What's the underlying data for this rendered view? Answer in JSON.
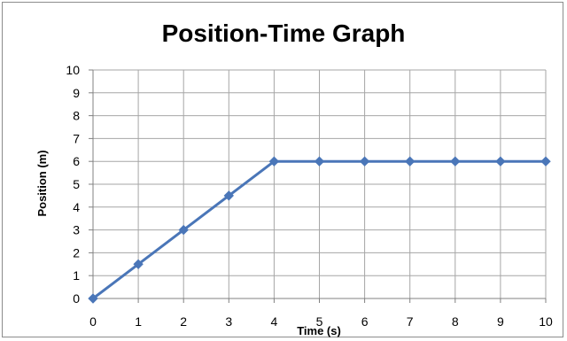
{
  "chart_data": {
    "type": "line",
    "title": "Position-Time Graph",
    "xlabel": "Time (s)",
    "ylabel": "Position (m)",
    "x": [
      0,
      1,
      2,
      3,
      4,
      5,
      6,
      7,
      8,
      9,
      10
    ],
    "series": [
      {
        "values": [
          0,
          1.5,
          3,
          4.5,
          6,
          6,
          6,
          6,
          6,
          6,
          6
        ]
      }
    ],
    "xlim": [
      0,
      10
    ],
    "ylim": [
      0,
      10
    ],
    "x_ticks": [
      "0",
      "1",
      "2",
      "3",
      "4",
      "5",
      "6",
      "7",
      "8",
      "9",
      "10"
    ],
    "y_ticks": [
      "0",
      "1",
      "2",
      "3",
      "4",
      "5",
      "6",
      "7",
      "8",
      "9",
      "10"
    ],
    "grid": true,
    "legend": "none",
    "colors": {
      "line": "#4a76b8",
      "grid": "#a6a6a6",
      "axis": "#808080"
    },
    "marker": "diamond"
  }
}
